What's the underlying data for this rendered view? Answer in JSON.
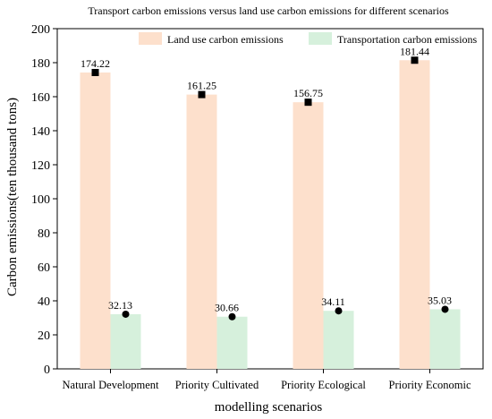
{
  "chart_data": {
    "type": "bar",
    "title": "Transport carbon emissions versus land use carbon emissions for different scenarios",
    "xlabel": "modelling scenarios",
    "ylabel": "Carbon emissions(ten thousand tons)",
    "categories": [
      "Natural Development",
      "Priority Cultivated",
      "Priority Ecological",
      "Priority Economic"
    ],
    "ylim": [
      0,
      200
    ],
    "yticks": [
      0,
      20,
      40,
      60,
      80,
      100,
      120,
      140,
      160,
      180,
      200
    ],
    "grid": false,
    "legend_position": "top-right",
    "series": [
      {
        "name": "Land use carbon emissions",
        "values": [
          174.22,
          161.25,
          156.75,
          181.44
        ],
        "labels": [
          "174.22",
          "161.25",
          "156.75",
          "181.44"
        ],
        "color": "#fde0cc",
        "marker": "square"
      },
      {
        "name": "Transportation carbon emissions",
        "values": [
          32.13,
          30.66,
          34.11,
          35.03
        ],
        "labels": [
          "32.13",
          "30.66",
          "34.11",
          "35.03"
        ],
        "color": "#d6f0dc",
        "marker": "circle"
      }
    ]
  }
}
